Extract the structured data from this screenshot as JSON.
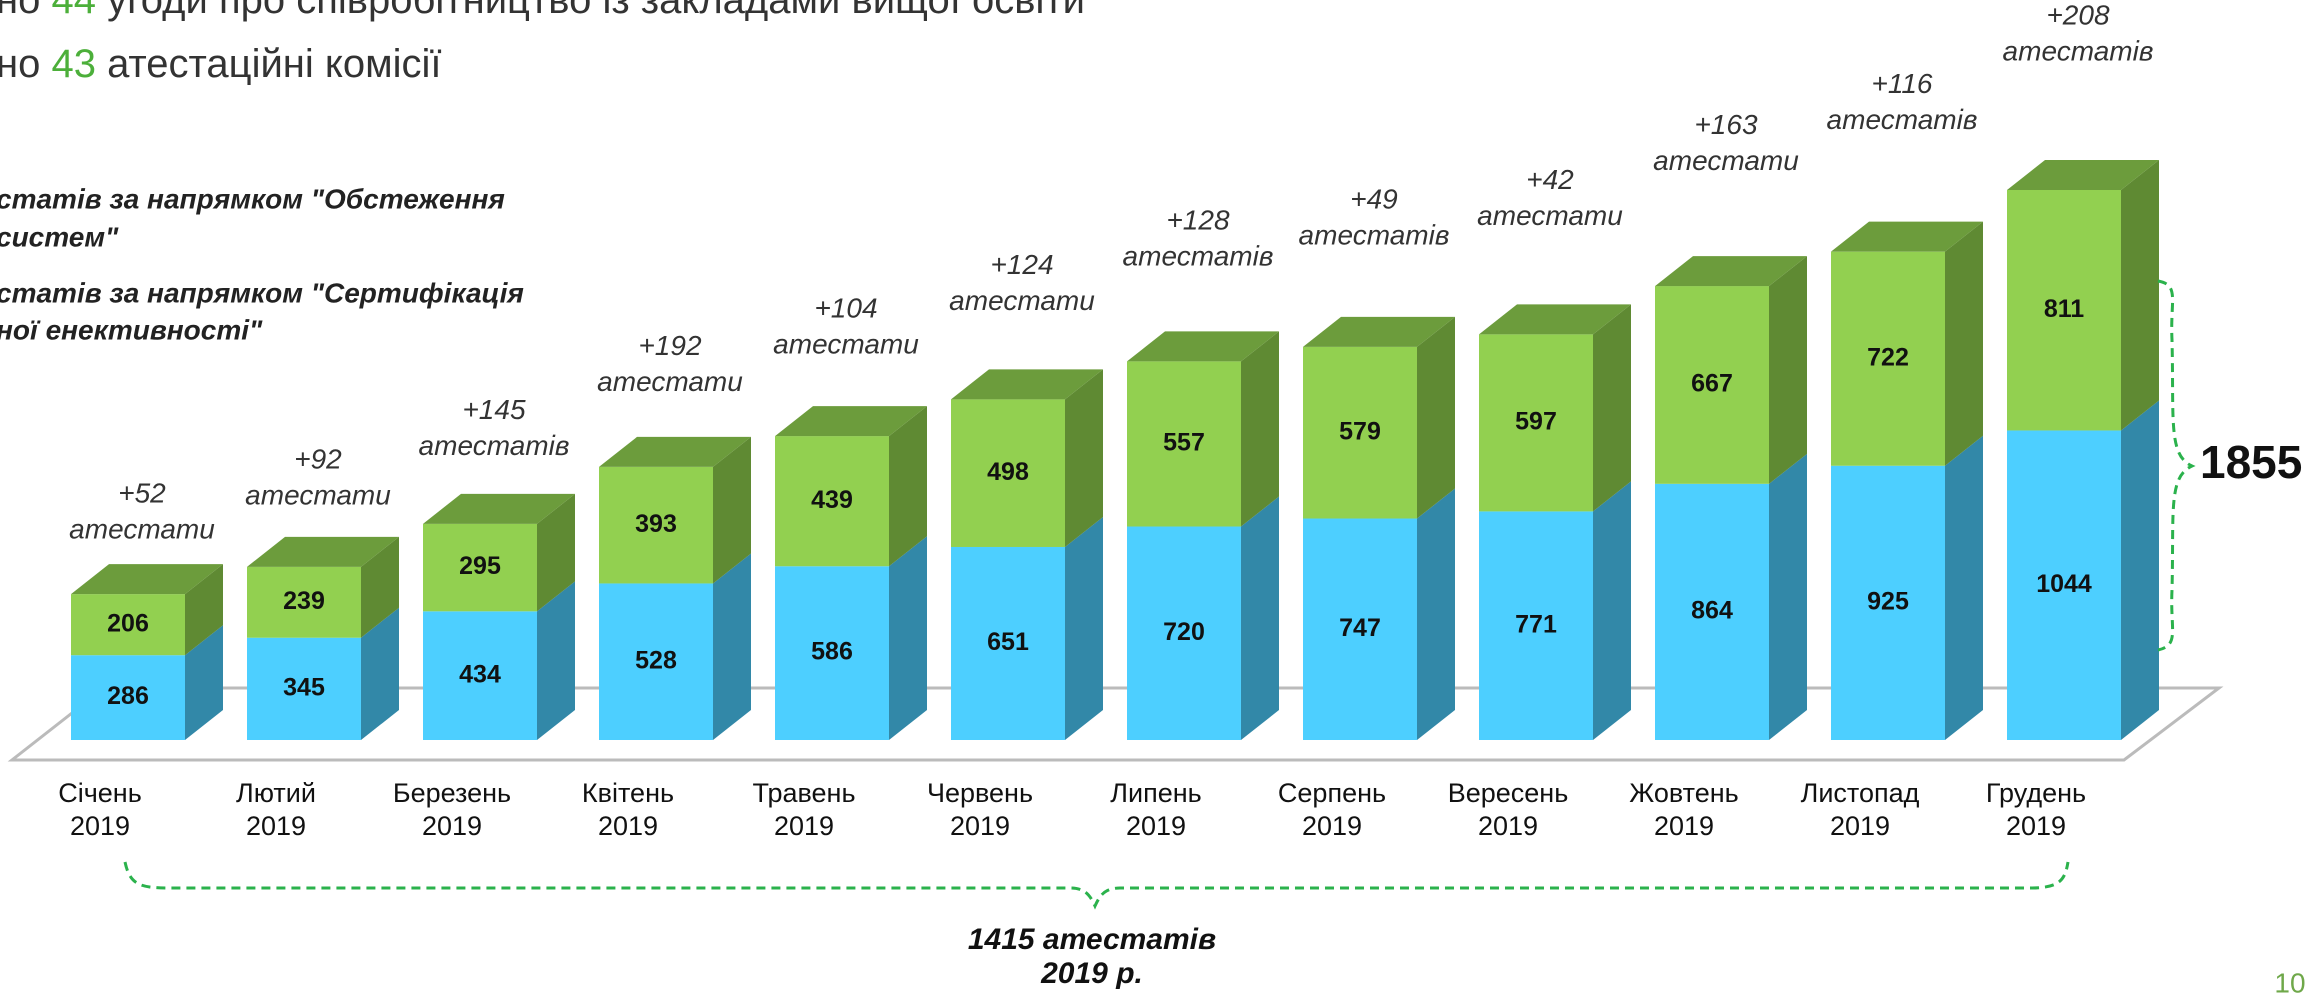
{
  "chart_data": {
    "type": "bar3d_stacked",
    "headline": [
      [
        "но ",
        "44",
        " угоди про співробітництво із закладами вищої освіти"
      ],
      [
        "но ",
        "43",
        " атестаційні комісії"
      ]
    ],
    "categories": [
      [
        "Січень",
        "2019"
      ],
      [
        "Лютий",
        "2019"
      ],
      [
        "Березень",
        "2019"
      ],
      [
        "Квітень",
        "2019"
      ],
      [
        "Травень",
        "2019"
      ],
      [
        "Червень",
        "2019"
      ],
      [
        "Липень",
        "2019"
      ],
      [
        "Серпень",
        "2019"
      ],
      [
        "Вересень",
        "2019"
      ],
      [
        "Жовтень",
        "2019"
      ],
      [
        "Листопад",
        "2019"
      ],
      [
        "Грудень",
        "2019"
      ]
    ],
    "series": [
      {
        "name": [
          "стaтів за напрямком \"Обстеження",
          " систем\""
        ],
        "color": "#4dcfff",
        "side_color": "#3288a8",
        "values": [
          286,
          345,
          434,
          528,
          586,
          651,
          720,
          747,
          771,
          864,
          925,
          1044
        ]
      },
      {
        "name": [
          "стaтів за напрямком \"Сертифікація",
          "ної енективності\""
        ],
        "color": "#92d050",
        "side_color": "#5f8a33",
        "top_color": "#6c9c3c",
        "values": [
          206,
          239,
          295,
          393,
          439,
          498,
          557,
          579,
          597,
          667,
          722,
          811
        ]
      }
    ],
    "annotations": [
      [
        "+52",
        "атестати"
      ],
      [
        "+92",
        "атестати"
      ],
      [
        "+145",
        "атестатів"
      ],
      [
        "+192",
        "атестати"
      ],
      [
        "+104",
        "атестати"
      ],
      [
        "+124",
        "атестати"
      ],
      [
        "+128",
        "атестатів"
      ],
      [
        "+49",
        "атестатів"
      ],
      [
        "+42",
        "атестати"
      ],
      [
        "+163",
        "атестати"
      ],
      [
        "+116",
        "атестатів"
      ],
      [
        "+208",
        "атестатів"
      ]
    ],
    "total": 1855,
    "year_total": [
      "1415 атестатів",
      "2019 р."
    ],
    "page_number": "10"
  }
}
